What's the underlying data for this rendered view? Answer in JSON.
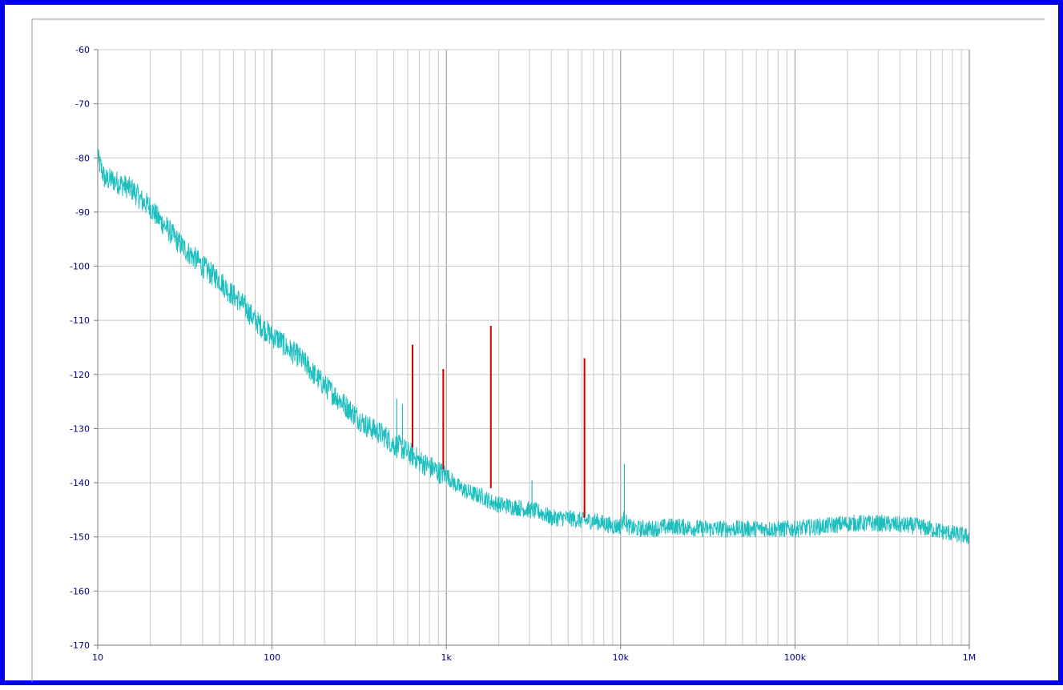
{
  "chart_data": {
    "type": "line",
    "title": "",
    "xlabel": "",
    "ylabel": "",
    "x_scale": "log",
    "xlim": [
      10,
      1000000
    ],
    "ylim": [
      -170,
      -60
    ],
    "grid": true,
    "legend": "none",
    "x_tick_values": [
      10,
      100,
      1000,
      10000,
      100000,
      1000000
    ],
    "x_tick_labels": [
      "10",
      "100",
      "1k",
      "10k",
      "100k",
      "1M"
    ],
    "y_tick_values": [
      -60,
      -70,
      -80,
      -90,
      -100,
      -110,
      -120,
      -130,
      -140,
      -150,
      -160,
      -170
    ],
    "y_tick_labels": [
      "-60",
      "-70",
      "-80",
      "-90",
      "-100",
      "-110",
      "-120",
      "-130",
      "-140",
      "-150",
      "-160",
      "-170"
    ],
    "series": [
      {
        "color": "#1fbfbf",
        "x": [
          10,
          11,
          12,
          14,
          16,
          18,
          20,
          22,
          25,
          28,
          32,
          36,
          40,
          45,
          50,
          56,
          63,
          70,
          80,
          90,
          100,
          110,
          120,
          140,
          160,
          180,
          200,
          250,
          300,
          350,
          400,
          450,
          500,
          550,
          600,
          650,
          700,
          800,
          900,
          1000,
          1100,
          1200,
          1400,
          1600,
          1800,
          2000,
          2500,
          3000,
          3500,
          4000,
          5000,
          6000,
          7000,
          8000,
          9000,
          10000,
          10500,
          11000,
          12000,
          15000,
          20000,
          30000,
          40000,
          50000,
          70000,
          100000,
          150000,
          200000,
          300000,
          500000,
          700000,
          1000000
        ],
        "y": [
          -80,
          -84,
          -84,
          -85,
          -86,
          -88,
          -89,
          -91,
          -93,
          -95,
          -97,
          -98.5,
          -100,
          -101.5,
          -102.5,
          -104.5,
          -106,
          -107.5,
          -110,
          -111.5,
          -113,
          -113.5,
          -115,
          -116.5,
          -118.5,
          -120.5,
          -122,
          -125,
          -127.5,
          -129.5,
          -130.5,
          -131.5,
          -133,
          -133.5,
          -134.5,
          -135,
          -136,
          -137,
          -138,
          -138.5,
          -140,
          -141,
          -142,
          -142.5,
          -143.5,
          -144,
          -144.5,
          -145,
          -145.5,
          -146.5,
          -146.5,
          -147,
          -147,
          -147.5,
          -148,
          -148,
          -146.5,
          -148,
          -148.5,
          -148.5,
          -148,
          -148.5,
          -148.5,
          -148.5,
          -148.5,
          -148.5,
          -148,
          -147.5,
          -147.5,
          -148,
          -149,
          -150
        ]
      },
      {
        "color": "#cc0000",
        "points": [
          {
            "x": 640,
            "y_top": -114.5,
            "y_bottom": -133.5
          },
          {
            "x": 960,
            "y_top": -119,
            "y_bottom": -137.5
          },
          {
            "x": 1800,
            "y_top": -111,
            "y_bottom": -141
          },
          {
            "x": 6200,
            "y_top": -117,
            "y_bottom": -146.5
          }
        ]
      },
      {
        "color": "#1fbfbf",
        "points": [
          {
            "x": 520,
            "y_top": -124.5,
            "y_bottom": -132
          },
          {
            "x": 560,
            "y_top": -125.5,
            "y_bottom": -133
          },
          {
            "x": 3100,
            "y_top": -139.5,
            "y_bottom": -145
          },
          {
            "x": 10500,
            "y_top": -136.5,
            "y_bottom": -147
          }
        ]
      }
    ]
  }
}
